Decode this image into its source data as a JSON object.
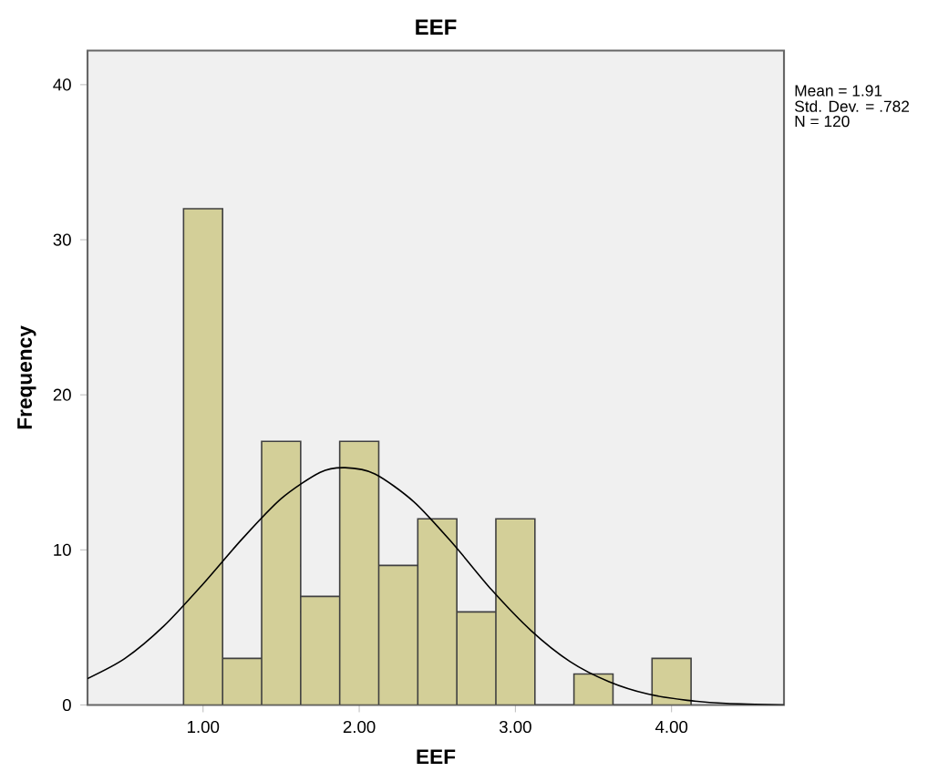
{
  "chart_data": {
    "type": "histogram",
    "title": "EEF",
    "xlabel": "EEF",
    "ylabel": "Frequency",
    "bins": [
      0.875,
      1.125,
      1.375,
      1.625,
      1.875,
      2.125,
      2.375,
      2.625,
      2.875,
      3.125,
      3.375,
      3.625,
      3.875,
      4.125
    ],
    "values": [
      32,
      3,
      17,
      7,
      17,
      9,
      12,
      6,
      12,
      0,
      2,
      0,
      3
    ],
    "color": "#d3cf98",
    "series": [
      {
        "type": "line",
        "color": "#000000",
        "x": [
          0.26,
          0.5,
          0.75,
          1.0,
          1.25,
          1.5,
          1.75,
          1.91,
          2.1,
          2.35,
          2.6,
          2.85,
          3.1,
          3.35,
          3.6,
          3.85,
          4.1,
          4.35,
          4.72
        ],
        "values": [
          1.7,
          3.0,
          5.1,
          7.8,
          10.7,
          13.3,
          15.0,
          15.3,
          14.9,
          13.1,
          10.4,
          7.4,
          4.8,
          2.8,
          1.5,
          0.7,
          0.3,
          0.1,
          0.0
        ]
      }
    ],
    "xlim": [
      0.26,
      4.72
    ],
    "ylim": [
      0,
      42.2
    ],
    "xticks": [
      {
        "value": 1,
        "label": "1.00"
      },
      {
        "value": 2,
        "label": "2.00"
      },
      {
        "value": 3,
        "label": "3.00"
      },
      {
        "value": 4,
        "label": "4.00"
      }
    ],
    "yticks": [
      0,
      10,
      20,
      30,
      40
    ],
    "grid": false,
    "annotations": [
      "Mean = 1.91",
      "Std. Dev. = .782",
      "N = 120"
    ]
  }
}
